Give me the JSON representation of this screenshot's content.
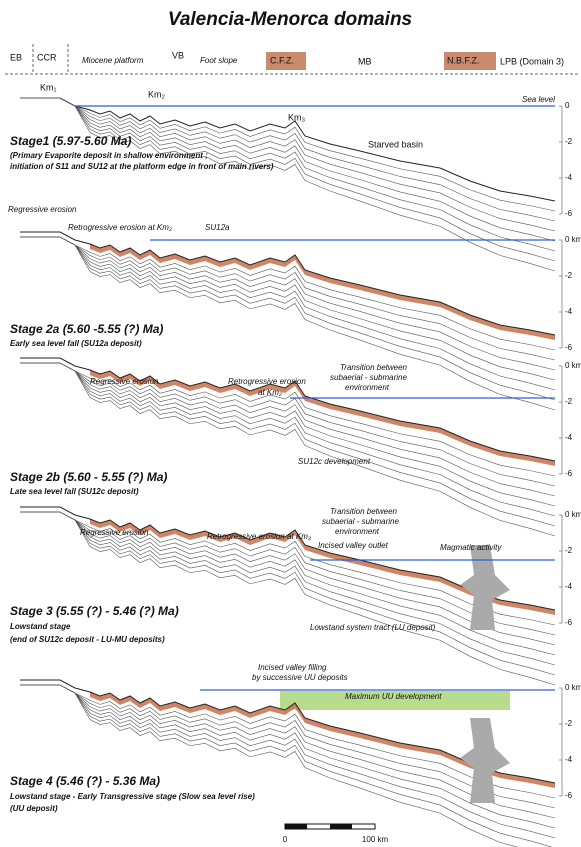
{
  "title": "Valencia-Menorca domains",
  "domains": [
    "EB",
    "CCR",
    "Miocene platform",
    "VB",
    "Foot slope",
    "C.F.Z.",
    "MB",
    "N.B.F.Z.",
    "LPB (Domain 3)"
  ],
  "stages": [
    {
      "title": "Stage1 (5.97-5.60 Ma)",
      "notes": [
        "(Primary Evaporite deposit in shallow environment ;",
        "initiation of S11 and SU12 at the platform edge in front of main rivers)"
      ],
      "labels": [
        "Km₁",
        "Km₂",
        "Km₃",
        "Sea level",
        "Starved basin"
      ],
      "ticks": [
        "0",
        "-2",
        "-4",
        "-6"
      ]
    },
    {
      "title": "Stage 2a (5.60 -5.55 (?) Ma)",
      "notes": [
        "Early sea level fall (SU12a deposit)"
      ],
      "labels": [
        "Regressive erosion",
        "Retrogressive erosion at Km₂",
        "SU12a"
      ],
      "ticks": [
        "0 km",
        "-2",
        "-4",
        "-6"
      ]
    },
    {
      "title": "Stage 2b (5.60 - 5.55 (?) Ma)",
      "notes": [
        "Late sea level fall (SU12c deposit)"
      ],
      "labels": [
        "Regressive erosion",
        "Retrogressive erosion",
        "at Km₂",
        "Transition between",
        "subaerial - submarine",
        "environment",
        "SU12c development"
      ],
      "ticks": [
        "0 km",
        "-2",
        "-4",
        "-6"
      ]
    },
    {
      "title": "Stage 3 (5.55 (?) - 5.46 (?) Ma)",
      "notes": [
        "Lowstand stage",
        "(end of SU12c deposit - LU-MU deposits)"
      ],
      "labels": [
        "Regressive erosion",
        "Retrogressive erosion at Km₃",
        "Transition between",
        "subaerial - submarine",
        "environment",
        "Incised valley outlet",
        "Magmatic activity",
        "Lowstand system tract (LU deposit)"
      ],
      "ticks": [
        "0 km",
        "-2",
        "-4",
        "-6"
      ]
    },
    {
      "title": "Stage 4 (5.46 (?) - 5.36 Ma)",
      "notes": [
        "Lowstand stage - Early Transgressive stage (Slow sea level rise)",
        "(UU deposit)"
      ],
      "labels": [
        "Incised valley filling",
        "by successive UU deposits",
        "Maximum UU development"
      ],
      "ticks": [
        "0 km",
        "-2",
        "-4",
        "-6"
      ]
    }
  ],
  "scale": [
    "0",
    "100 km"
  ]
}
